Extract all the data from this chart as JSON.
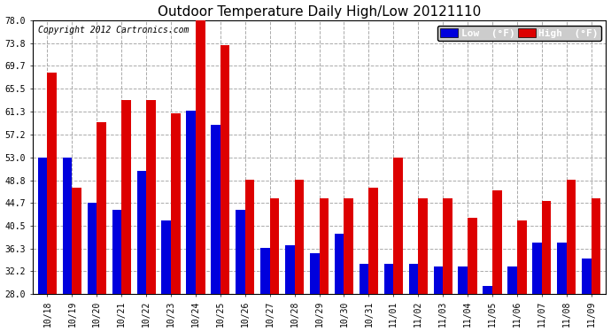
{
  "title": "Outdoor Temperature Daily High/Low 20121110",
  "copyright": "Copyright 2012 Cartronics.com",
  "legend_low_label": "Low  (°F)",
  "legend_high_label": "High  (°F)",
  "dates": [
    "10/18",
    "10/19",
    "10/20",
    "10/21",
    "10/22",
    "10/23",
    "10/24",
    "10/25",
    "10/26",
    "10/27",
    "10/28",
    "10/29",
    "10/30",
    "10/31",
    "11/01",
    "11/02",
    "11/03",
    "11/04",
    "11/05",
    "11/06",
    "11/07",
    "11/08",
    "11/09"
  ],
  "high": [
    68.5,
    47.5,
    59.5,
    63.5,
    63.5,
    61.0,
    78.0,
    73.5,
    49.0,
    45.5,
    49.0,
    45.5,
    45.5,
    47.5,
    53.0,
    45.5,
    45.5,
    42.0,
    47.0,
    41.5,
    45.0,
    49.0,
    45.5
  ],
  "low": [
    53.0,
    53.0,
    44.7,
    43.5,
    50.5,
    41.5,
    61.5,
    59.0,
    43.5,
    36.5,
    37.0,
    35.5,
    39.0,
    33.5,
    33.5,
    33.5,
    33.0,
    33.0,
    29.5,
    33.0,
    37.5,
    37.5,
    34.5
  ],
  "yticks": [
    28.0,
    32.2,
    36.3,
    40.5,
    44.7,
    48.8,
    53.0,
    57.2,
    61.3,
    65.5,
    69.7,
    73.8,
    78.0
  ],
  "ymin": 28.0,
  "ymax": 78.0,
  "bar_width": 0.38,
  "low_color": "#0000dd",
  "high_color": "#dd0000",
  "bg_color": "#ffffff",
  "grid_color": "#aaaaaa",
  "plot_bg_color": "#ffffff",
  "title_fontsize": 11,
  "copyright_fontsize": 7,
  "tick_fontsize": 7,
  "legend_fontsize": 8
}
